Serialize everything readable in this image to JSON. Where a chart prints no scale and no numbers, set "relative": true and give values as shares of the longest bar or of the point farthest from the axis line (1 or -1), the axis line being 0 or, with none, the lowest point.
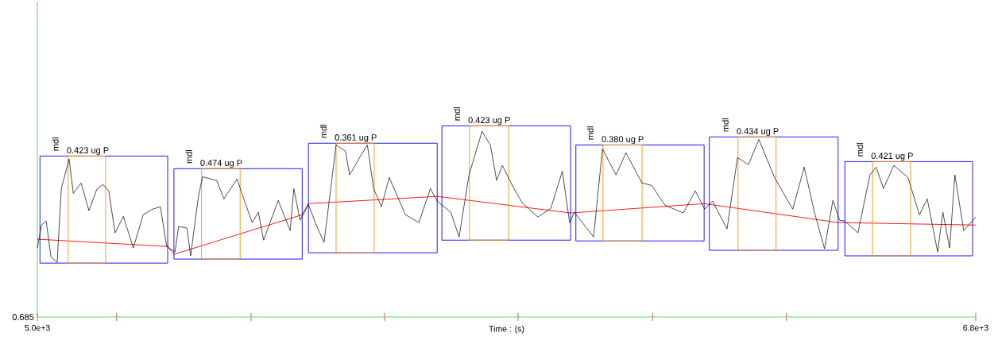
{
  "chart_data": {
    "type": "line",
    "relative": true,
    "xlabel": "Time : (s)",
    "xlim": [
      5000,
      6800
    ],
    "xticks": [
      {
        "value": 5000,
        "label": "5.0e+3"
      },
      {
        "value": 5152,
        "label": null
      },
      {
        "value": 5410,
        "label": null
      },
      {
        "value": 5666,
        "label": null
      },
      {
        "value": 5922,
        "label": null
      },
      {
        "value": 6180,
        "label": null
      },
      {
        "value": 6437,
        "label": null
      },
      {
        "value": 6800,
        "label": "6.8e+3"
      }
    ],
    "series": [
      {
        "color": "#000000",
        "x": [
          5000,
          5008,
          5017,
          5026,
          5038,
          5046,
          5061,
          5069,
          5084,
          5099,
          5114,
          5126,
          5137,
          5149,
          5165,
          5184,
          5203,
          5221,
          5236,
          5248,
          5264,
          5271,
          5287,
          5294,
          5309,
          5317,
          5344,
          5358,
          5383,
          5396,
          5412,
          5424,
          5434,
          5462,
          5485,
          5492,
          5504,
          5520,
          5533,
          5550,
          5573,
          5591,
          5599,
          5619,
          5633,
          5645,
          5660,
          5675,
          5706,
          5732,
          5754,
          5767,
          5793,
          5809,
          5828,
          5853,
          5869,
          5881,
          5892,
          5914,
          5930,
          5960,
          5985,
          6007,
          6021,
          6030,
          6067,
          6084,
          6110,
          6129,
          6160,
          6178,
          6204,
          6239,
          6262,
          6280,
          6295,
          6323,
          6343,
          6364,
          6384,
          6414,
          6449,
          6471,
          6491,
          6510,
          6526,
          6539,
          6549,
          6574,
          6597,
          6609,
          6623,
          6643,
          6670,
          6692,
          6707,
          6727,
          6737,
          6750,
          6760,
          6777,
          6800
        ],
        "values": [
          0.361,
          0.481,
          0.502,
          0.315,
          0.286,
          0.672,
          0.826,
          0.647,
          0.701,
          0.556,
          0.668,
          0.693,
          0.66,
          0.44,
          0.527,
          0.361,
          0.535,
          0.564,
          0.577,
          0.369,
          0.34,
          0.473,
          0.465,
          0.32,
          0.631,
          0.734,
          0.714,
          0.618,
          0.722,
          0.618,
          0.494,
          0.548,
          0.402,
          0.61,
          0.452,
          0.672,
          0.506,
          0.589,
          0.494,
          0.39,
          0.9,
          0.867,
          0.743,
          0.838,
          0.9,
          0.672,
          0.577,
          0.73,
          0.535,
          0.494,
          0.672,
          0.606,
          0.548,
          0.419,
          0.743,
          0.971,
          0.9,
          0.714,
          0.793,
          0.672,
          0.598,
          0.523,
          0.568,
          0.763,
          0.494,
          0.548,
          0.419,
          0.88,
          0.743,
          0.859,
          0.701,
          0.689,
          0.585,
          0.544,
          0.66,
          0.564,
          0.606,
          0.461,
          0.834,
          0.797,
          0.929,
          0.73,
          0.564,
          0.784,
          0.544,
          0.357,
          0.61,
          0.506,
          0.502,
          0.44,
          0.743,
          0.784,
          0.672,
          0.793,
          0.73,
          0.535,
          0.618,
          0.34,
          0.548,
          0.361,
          0.743,
          0.452,
          0.523
        ]
      },
      {
        "color": "#ff0000",
        "x": [
          5000,
          5250,
          5262,
          5508,
          5520,
          5767,
          6023,
          6279,
          6536,
          6800
        ],
        "values": [
          0.407,
          0.369,
          0.328,
          0.535,
          0.593,
          0.631,
          0.544,
          0.593,
          0.494,
          0.481
        ]
      },
      {
        "color": "#0000ff",
        "x": [
          5005,
          5005,
          5250,
          5250
        ],
        "values": [
          0.282,
          0.842,
          0.842,
          0.282
        ]
      },
      {
        "color": "#0000ff",
        "x": [
          5005,
          5250
        ],
        "values": [
          0.282,
          0.282
        ]
      },
      {
        "color": "#ff8c00",
        "x": [
          5059,
          5059,
          5131,
          5131
        ],
        "values": [
          0.282,
          0.842,
          0.842,
          0.282
        ]
      },
      {
        "color": "#ff8c00",
        "x": [
          5059,
          5131
        ],
        "values": [
          0.282,
          0.282
        ]
      },
      {
        "color": "#0000ff",
        "x": [
          5262,
          5262,
          5508,
          5508
        ],
        "values": [
          0.303,
          0.776,
          0.776,
          0.303
        ]
      },
      {
        "color": "#0000ff",
        "x": [
          5262,
          5508
        ],
        "values": [
          0.303,
          0.303
        ]
      },
      {
        "color": "#ff8c00",
        "x": [
          5315,
          5315,
          5389,
          5389
        ],
        "values": [
          0.303,
          0.776,
          0.776,
          0.303
        ]
      },
      {
        "color": "#ff8c00",
        "x": [
          5315,
          5389
        ],
        "values": [
          0.303,
          0.303
        ]
      },
      {
        "color": "#0000ff",
        "x": [
          5520,
          5520,
          5767,
          5767
        ],
        "values": [
          0.336,
          0.909,
          0.909,
          0.336
        ]
      },
      {
        "color": "#0000ff",
        "x": [
          5520,
          5767
        ],
        "values": [
          0.336,
          0.336
        ]
      },
      {
        "color": "#ff8c00",
        "x": [
          5573,
          5573,
          5646,
          5646
        ],
        "values": [
          0.336,
          0.909,
          0.909,
          0.336
        ]
      },
      {
        "color": "#ff8c00",
        "x": [
          5573,
          5646
        ],
        "values": [
          0.336,
          0.336
        ]
      },
      {
        "color": "#0000ff",
        "x": [
          5776,
          5776,
          6023,
          6023
        ],
        "values": [
          0.402,
          1.0,
          1.0,
          0.402
        ]
      },
      {
        "color": "#0000ff",
        "x": [
          5776,
          6023
        ],
        "values": [
          0.402,
          0.402
        ]
      },
      {
        "color": "#ff8c00",
        "x": [
          5829,
          5829,
          5904,
          5904
        ],
        "values": [
          0.402,
          1.0,
          1.0,
          0.402
        ]
      },
      {
        "color": "#ff8c00",
        "x": [
          5829,
          5904
        ],
        "values": [
          0.402,
          0.402
        ]
      },
      {
        "color": "#0000ff",
        "x": [
          6033,
          6033,
          6279,
          6279
        ],
        "values": [
          0.398,
          0.9,
          0.9,
          0.398
        ]
      },
      {
        "color": "#0000ff",
        "x": [
          6033,
          6279
        ],
        "values": [
          0.398,
          0.398
        ]
      },
      {
        "color": "#ff8c00",
        "x": [
          6085,
          6085,
          6160,
          6160
        ],
        "values": [
          0.398,
          0.9,
          0.9,
          0.398
        ]
      },
      {
        "color": "#ff8c00",
        "x": [
          6085,
          6160
        ],
        "values": [
          0.398,
          0.398
        ]
      },
      {
        "color": "#0000ff",
        "x": [
          6289,
          6289,
          6536,
          6536
        ],
        "values": [
          0.349,
          0.942,
          0.942,
          0.349
        ]
      },
      {
        "color": "#0000ff",
        "x": [
          6289,
          6536
        ],
        "values": [
          0.349,
          0.349
        ]
      },
      {
        "color": "#ff8c00",
        "x": [
          6344,
          6344,
          6417,
          6417
        ],
        "values": [
          0.349,
          0.942,
          0.942,
          0.349
        ]
      },
      {
        "color": "#ff8c00",
        "x": [
          6344,
          6417
        ],
        "values": [
          0.349,
          0.349
        ]
      },
      {
        "color": "#0000ff",
        "x": [
          6549,
          6549,
          6794,
          6794
        ],
        "values": [
          0.32,
          0.813,
          0.813,
          0.32
        ]
      },
      {
        "color": "#0000ff",
        "x": [
          6549,
          6794
        ],
        "values": [
          0.32,
          0.32
        ]
      },
      {
        "color": "#ff8c00",
        "x": [
          6602,
          6602,
          6675,
          6675
        ],
        "values": [
          0.32,
          0.813,
          0.813,
          0.32
        ]
      },
      {
        "color": "#ff8c00",
        "x": [
          6602,
          6675
        ],
        "values": [
          0.32,
          0.32
        ]
      }
    ],
    "annotations": [
      {
        "text": "mdl",
        "x": 5059,
        "y": 0.842
      },
      {
        "text": "0.423 ug P",
        "x": 5059,
        "y": 0.842
      },
      {
        "text": "mdl",
        "x": 5315,
        "y": 0.776
      },
      {
        "text": "0.474 ug P",
        "x": 5315,
        "y": 0.776
      },
      {
        "text": "mdl",
        "x": 5573,
        "y": 0.909
      },
      {
        "text": "0.361 ug P",
        "x": 5573,
        "y": 0.909
      },
      {
        "text": "mdl",
        "x": 5829,
        "y": 1.0
      },
      {
        "text": "0.423 ug P",
        "x": 5829,
        "y": 1.0
      },
      {
        "text": "mdl",
        "x": 6085,
        "y": 0.9
      },
      {
        "text": "0.380 ug P",
        "x": 6085,
        "y": 0.9
      },
      {
        "text": "mdl",
        "x": 6344,
        "y": 0.942
      },
      {
        "text": "0.434 ug P",
        "x": 6344,
        "y": 0.942
      },
      {
        "text": "mdl",
        "x": 6602,
        "y": 0.813
      },
      {
        "text": "0.421 ug P",
        "x": 6602,
        "y": 0.813
      },
      "0.685"
    ]
  }
}
